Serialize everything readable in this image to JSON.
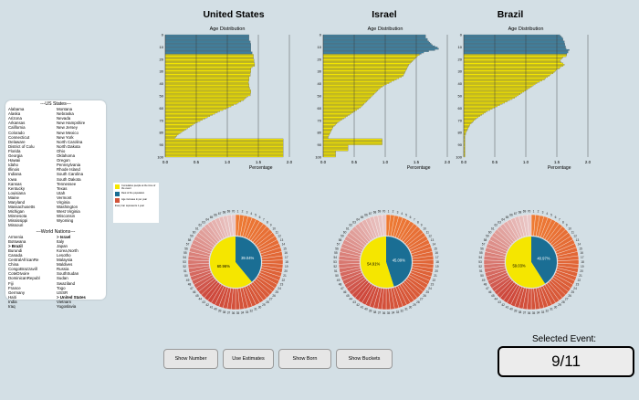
{
  "sidebar": {
    "us_header": "---US States---",
    "us_states_col1": [
      "Alabama",
      "Alaska",
      "Arizona",
      "Arkansas",
      "California",
      "Colorado",
      "Connecticut",
      "Delaware",
      "District of Colu",
      "Florida",
      "Georgia",
      "Hawaii",
      "Idaho",
      "Illinois",
      "Indiana",
      "Iowa",
      "Kansas",
      "Kentucky",
      "Louisiana",
      "Maine",
      "Maryland",
      "Massachusetts",
      "Michigan",
      "Minnesota",
      "Mississippi",
      "Missouri"
    ],
    "us_states_col2": [
      "Montana",
      "Nebraska",
      "Nevada",
      "New Hampshire",
      "New Jersey",
      "New Mexico",
      "New York",
      "North Carolina",
      "North Dakota",
      "Ohio",
      "Oklahoma",
      "Oregon",
      "Pennsylvania",
      "Rhode Island",
      "South Carolina",
      "South Dakota",
      "Tennessee",
      "Texas",
      "Utah",
      "Vermont",
      "Virginia",
      "Washington",
      "West Virginia",
      "Wisconsin",
      "Wyoming"
    ],
    "world_header": "---World Nations---",
    "world_col1": [
      "Armenia",
      "Botswana",
      "> Brazil",
      "Burundi",
      "Canada",
      "CentralAfricanRe",
      "China",
      "CongoBrazzavill",
      "CoteDIvoire",
      "DominicanRepubl",
      "Fiji",
      "France",
      "Germany",
      "Haiti",
      "India",
      "Iraq"
    ],
    "world_col2": [
      "> Israel",
      "Italy",
      "Japan",
      "Korea,North",
      "Lesotho",
      "Malaysia",
      "Maldives",
      "Russia",
      "SouthSudan",
      "Sudan",
      "Swaziland",
      "Togo",
      "USSR",
      "> United States",
      "Vietnam",
      "Yugoslavia"
    ]
  },
  "countries": [
    {
      "name": "United States",
      "chart_title": "Age Distribution",
      "pie_pct": [
        "60.96%",
        "39.04%"
      ]
    },
    {
      "name": "Israel",
      "chart_title": "Age Distribution",
      "pie_pct": [
        "54.91%",
        "45.09%"
      ]
    },
    {
      "name": "Brazil",
      "chart_title": "Age Distribution",
      "pie_pct": [
        "59.03%",
        "40.97%"
      ]
    }
  ],
  "axis": {
    "xlabel": "Percentage",
    "xticks": [
      "0.0",
      "0.5",
      "1.0",
      "1.5",
      "2.0"
    ],
    "yticks": [
      "0",
      "10",
      "20",
      "30",
      "40",
      "50",
      "60",
      "70",
      "80",
      "90",
      "100"
    ]
  },
  "legend": {
    "items": [
      {
        "color": "#f5e600",
        "label": "Cumulative people at the time of the event"
      },
      {
        "color": "#1a6e94",
        "label": "Rest of the population"
      },
      {
        "color": "#d2553a",
        "label": "Age increase in per year"
      }
    ],
    "note": "Every bar represents 1 year"
  },
  "buttons": [
    "Show Number",
    "Use Estimates",
    "Show Born",
    "Show Buckets"
  ],
  "selected_event": {
    "label": "Selected Event:",
    "value": "9/11"
  },
  "colors": {
    "pre_event": "#f5e600",
    "post_event": "#3d84a6",
    "pie_rest": "#1a6e94",
    "wedge": "#ee7a33"
  },
  "chart_data": [
    {
      "type": "bar",
      "title": "Age Distribution",
      "xlabel": "Percentage",
      "xlim": [
        0,
        2.0
      ],
      "ylim": [
        0,
        100
      ],
      "series": [
        {
          "values": [
            1.35,
            1.35,
            1.35,
            1.35,
            1.35,
            1.37,
            1.37,
            1.38,
            1.38,
            1.38,
            1.38,
            1.38,
            1.38,
            1.38,
            1.4,
            1.4,
            1.42,
            1.42,
            1.42,
            1.42,
            1.43,
            1.43,
            1.43,
            1.44,
            1.44,
            1.44,
            1.4,
            1.38,
            1.38,
            1.38,
            1.38,
            1.37,
            1.37,
            1.37,
            1.35,
            1.35,
            1.35,
            1.35,
            1.34,
            1.34,
            1.35,
            1.35,
            1.35,
            1.36,
            1.36,
            1.38,
            1.38,
            1.38,
            1.37,
            1.37,
            1.33,
            1.3,
            1.28,
            1.26,
            1.22,
            1.18,
            1.15,
            1.1,
            1.06,
            1.02,
            0.98,
            0.93,
            0.88,
            0.84,
            0.8,
            0.76,
            0.72,
            0.68,
            0.64,
            0.6,
            0.56,
            0.52,
            0.48,
            0.45,
            0.42,
            0.39,
            0.36,
            0.33,
            0.3,
            0.27,
            0.24,
            0.21,
            0.19,
            0.17,
            0.15,
            1.9,
            1.9,
            1.9,
            1.9,
            1.9,
            1.9,
            1.9,
            1.9,
            1.9,
            1.9,
            1.9,
            1.9,
            1.9,
            1.9,
            1.9
          ]
        }
      ]
    },
    {
      "type": "bar",
      "title": "Age Distribution",
      "xlabel": "Percentage",
      "xlim": [
        0,
        2.0
      ],
      "ylim": [
        0,
        100
      ],
      "series": [
        {
          "values": [
            1.65,
            1.65,
            1.65,
            1.68,
            1.68,
            1.7,
            1.72,
            1.74,
            1.76,
            1.8,
            1.84,
            1.86,
            1.8,
            1.7,
            1.62,
            1.58,
            1.55,
            1.52,
            1.5,
            1.48,
            1.46,
            1.44,
            1.42,
            1.4,
            1.38,
            1.37,
            1.36,
            1.35,
            1.34,
            1.33,
            1.32,
            1.31,
            1.3,
            1.29,
            1.26,
            1.22,
            1.18,
            1.14,
            1.1,
            1.06,
            1.02,
            0.98,
            0.95,
            0.92,
            0.9,
            0.88,
            0.86,
            0.84,
            0.82,
            0.8,
            0.78,
            0.76,
            0.74,
            0.72,
            0.7,
            0.68,
            0.66,
            0.64,
            0.62,
            0.6,
            0.57,
            0.54,
            0.51,
            0.48,
            0.45,
            0.42,
            0.39,
            0.36,
            0.33,
            0.3,
            0.27,
            0.24,
            0.22,
            0.2,
            0.18,
            0.16,
            0.15,
            0.14,
            0.13,
            0.12,
            0.11,
            0.1,
            0.09,
            0.08,
            0.08,
            0.95,
            0.95,
            0.95,
            0.95,
            0.95,
            0.4,
            0.4,
            0.4,
            0.4,
            0.4,
            0.2,
            0.2,
            0.2,
            0.2,
            0.2
          ]
        }
      ]
    },
    {
      "type": "bar",
      "title": "Age Distribution",
      "xlabel": "Percentage",
      "xlim": [
        0,
        2.0
      ],
      "ylim": [
        0,
        100
      ],
      "series": [
        {
          "values": [
            1.55,
            1.57,
            1.59,
            1.6,
            1.6,
            1.62,
            1.62,
            1.63,
            1.63,
            1.64,
            1.64,
            1.65,
            1.7,
            1.68,
            1.68,
            1.66,
            1.66,
            1.65,
            1.6,
            1.58,
            1.56,
            1.55,
            1.57,
            1.6,
            1.62,
            1.6,
            1.56,
            1.54,
            1.5,
            1.48,
            1.46,
            1.44,
            1.4,
            1.38,
            1.35,
            1.32,
            1.3,
            1.26,
            1.22,
            1.18,
            1.15,
            1.12,
            1.09,
            1.06,
            1.03,
            1.0,
            0.97,
            0.94,
            0.91,
            0.88,
            0.85,
            0.82,
            0.78,
            0.74,
            0.7,
            0.66,
            0.62,
            0.58,
            0.54,
            0.5,
            0.46,
            0.42,
            0.38,
            0.35,
            0.32,
            0.29,
            0.26,
            0.23,
            0.2,
            0.18,
            0.16,
            0.14,
            0.12,
            0.1,
            0.09,
            0.08,
            0.07,
            0.06,
            0.05,
            0.04,
            0.03,
            0.03,
            0.02,
            0.02,
            0.02,
            0.02,
            0.02,
            0.02,
            0.02,
            0.02,
            0.02,
            0.02,
            0.02,
            0.02,
            0.02,
            0.02,
            0.02,
            0.02,
            0.02,
            0.02
          ]
        }
      ]
    }
  ]
}
